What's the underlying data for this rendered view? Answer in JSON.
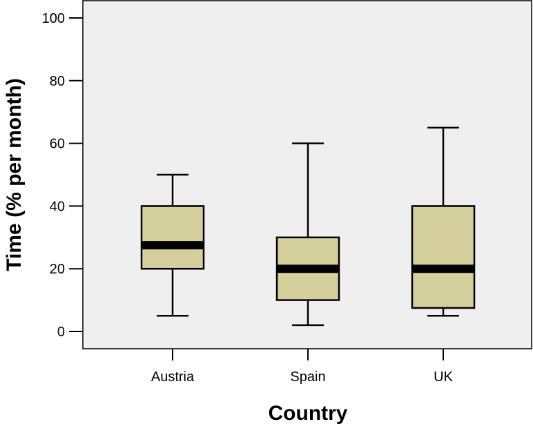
{
  "chart_data": {
    "type": "boxplot",
    "title": "",
    "xlabel": "Country",
    "ylabel": "Time (% per month)",
    "ylim": [
      0,
      100
    ],
    "yticks": [
      0,
      20,
      40,
      60,
      80,
      100
    ],
    "grid": false,
    "categories": [
      "Austria",
      "Spain",
      "UK"
    ],
    "boxes": [
      {
        "category": "Austria",
        "min": 5,
        "q1": 20,
        "median": 27.5,
        "q3": 40,
        "max": 50
      },
      {
        "category": "Spain",
        "min": 2,
        "q1": 10,
        "median": 20,
        "q3": 30,
        "max": 60
      },
      {
        "category": "UK",
        "min": 5,
        "q1": 7.5,
        "median": 20,
        "q3": 40,
        "max": 65
      }
    ],
    "colors": {
      "plot_background": "#efefef",
      "box_fill": "#d5cf9e",
      "stroke": "#000000"
    }
  }
}
